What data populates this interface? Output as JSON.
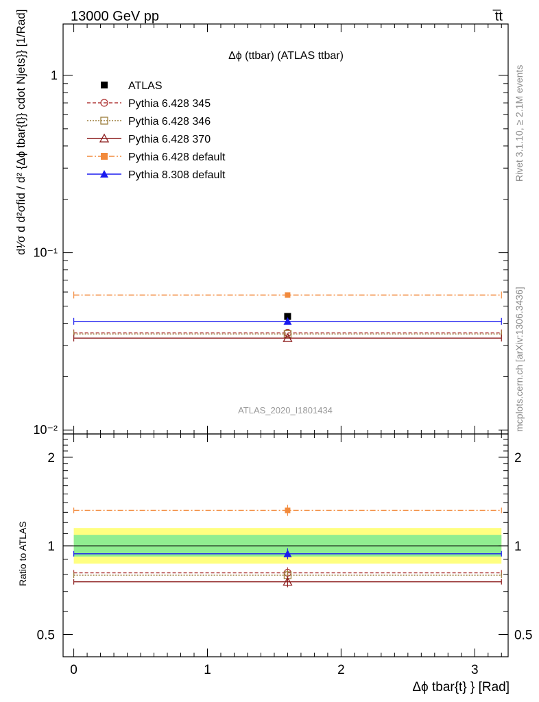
{
  "header": {
    "left": "13000 GeV pp",
    "right": "t̅t"
  },
  "side_text": {
    "rivet": "Rivet 3.1.10, ≥ 2.1M events",
    "mcplots": "mcplots.cern.ch [arXiv:1306.3436]"
  },
  "watermark": "ATLAS_2020_I1801434",
  "colors": {
    "atlas": "#000000",
    "p345": "#b03a3a",
    "p346": "#9b7d3a",
    "p370": "#8b1a1a",
    "p6def": "#f28a3c",
    "p8def": "#1a1aef",
    "band_inner": "#90ee90",
    "band_outer": "#ffff80"
  },
  "chart_data": [
    {
      "type": "scatter",
      "title": "Δϕ (ttbar) (ATLAS ttbar)",
      "ylabel": "d¹⁄σ d d²σfid / d² {Δϕ tbar{t}} cdot Njets}} [1/Rad]",
      "yscale": "log",
      "xlim": [
        -0.08,
        3.25
      ],
      "ylim": [
        0.0095,
        1.95
      ],
      "ytick_labels": [
        "10⁻²",
        "10⁻¹",
        "1"
      ],
      "bin": [
        0.0,
        3.2
      ],
      "x_center": 1.6,
      "series": [
        {
          "name": "ATLAS",
          "value": 0.0437,
          "style": "data"
        },
        {
          "name": "Pythia 6.428 345",
          "value": 0.0353,
          "style": "dashed"
        },
        {
          "name": "Pythia 6.428 346",
          "value": 0.0348,
          "style": "dotted"
        },
        {
          "name": "Pythia 6.428 370",
          "value": 0.033,
          "style": "solid"
        },
        {
          "name": "Pythia 6.428 default",
          "value": 0.0577,
          "style": "dashdot"
        },
        {
          "name": "Pythia 8.308 default",
          "value": 0.041,
          "style": "solid"
        }
      ]
    },
    {
      "type": "scatter",
      "ylabel": "Ratio to ATLAS",
      "xlabel": "Δϕ tbar{t} } [Rad]",
      "xlim": [
        -0.08,
        3.25
      ],
      "ylim": [
        0.42,
        2.4
      ],
      "yscale": "log",
      "ytick_labels": [
        "0.5",
        "1",
        "2"
      ],
      "xtick_labels": [
        "0",
        "1",
        "2",
        "3"
      ],
      "band_inner": [
        0.92,
        1.09
      ],
      "band_outer": [
        0.87,
        1.15
      ],
      "series": [
        {
          "name": "Pythia 6.428 345",
          "value": 0.81
        },
        {
          "name": "Pythia 6.428 346",
          "value": 0.795
        },
        {
          "name": "Pythia 6.428 370",
          "value": 0.755
        },
        {
          "name": "Pythia 6.428 default",
          "value": 1.32
        },
        {
          "name": "Pythia 8.308 default",
          "value": 0.94
        }
      ]
    }
  ]
}
